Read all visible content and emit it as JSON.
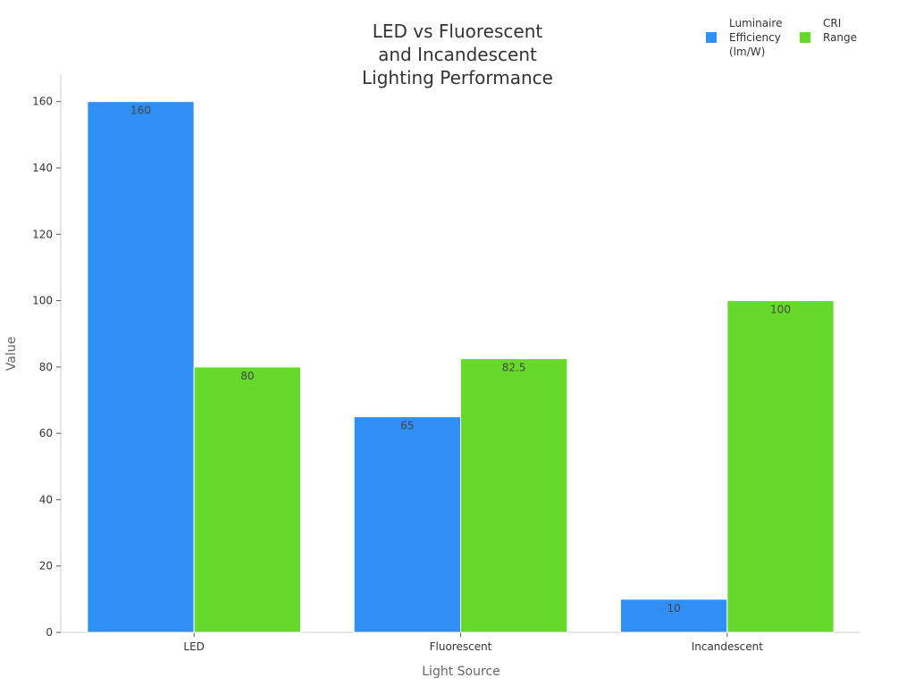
{
  "chart_data": {
    "type": "bar",
    "title_lines": [
      "LED vs Fluorescent",
      "and Incandescent",
      "Lighting Performance"
    ],
    "xlabel": "Light Source",
    "ylabel": "Value",
    "categories": [
      "LED",
      "Fluorescent",
      "Incandescent"
    ],
    "ylim": [
      0,
      168
    ],
    "yticks": [
      0,
      20,
      40,
      60,
      80,
      100,
      120,
      140,
      160
    ],
    "grid": false,
    "legend_position": "top-right",
    "series": [
      {
        "name_lines": [
          "Luminaire",
          "Efficiency",
          "(lm/W)"
        ],
        "color": "#2f8ff5",
        "values": [
          160,
          65,
          10
        ],
        "labels": [
          "160",
          "65",
          "10"
        ]
      },
      {
        "name_lines": [
          "CRI",
          "Range"
        ],
        "color": "#66d92a",
        "values": [
          80,
          82.5,
          100
        ],
        "labels": [
          "80",
          "82.5",
          "100"
        ]
      }
    ]
  }
}
